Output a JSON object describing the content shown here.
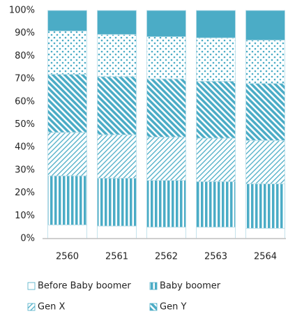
{
  "chart_data": {
    "type": "stacked_bar",
    "categories": [
      "2560",
      "2561",
      "2562",
      "2563",
      "2564"
    ],
    "series": [
      {
        "name": "Before Baby boomer",
        "color": "#4bacc6",
        "pattern": "outline",
        "values": [
          6,
          5.5,
          5,
          5,
          4.5
        ]
      },
      {
        "name": "Baby boomer",
        "color": "#4bacc6",
        "pattern": "vstripe",
        "values": [
          21.5,
          21,
          20.5,
          20,
          19.5
        ]
      },
      {
        "name": "Gen X",
        "color": "#4bacc6",
        "pattern": "hatch-light",
        "values": [
          19,
          19,
          19,
          19,
          19
        ]
      },
      {
        "name": "Gen Y",
        "color": "#4bacc6",
        "pattern": "hatch-dense",
        "values": [
          25.5,
          25.5,
          25.5,
          25,
          25
        ]
      },
      {
        "color": "#4bacc6",
        "pattern": "dots",
        "values": [
          19,
          18.5,
          18.5,
          19,
          19
        ]
      },
      {
        "color": "#4bacc6",
        "pattern": "solid",
        "values": [
          9,
          10.5,
          11.5,
          12,
          13
        ]
      }
    ],
    "ylim": [
      0,
      100
    ],
    "yticks": [
      {
        "value": 0,
        "label": "0%"
      },
      {
        "value": 10,
        "label": "10%"
      },
      {
        "value": 20,
        "label": "20%"
      },
      {
        "value": 30,
        "label": "30%"
      },
      {
        "value": 40,
        "label": "40%"
      },
      {
        "value": 50,
        "label": "50%"
      },
      {
        "value": 60,
        "label": "60%"
      },
      {
        "value": 70,
        "label": "70%"
      },
      {
        "value": 80,
        "label": "80%"
      },
      {
        "value": 90,
        "label": "90%"
      },
      {
        "value": 100,
        "label": "100%"
      }
    ],
    "grid": false
  }
}
